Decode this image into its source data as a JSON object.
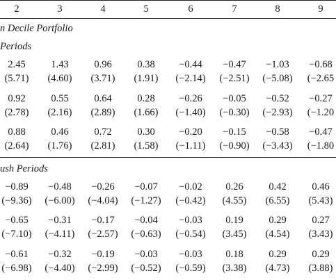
{
  "header": {
    "columns": [
      "2",
      "3",
      "4",
      "5",
      "6",
      "7",
      "8",
      "9"
    ]
  },
  "panel_title": "n Decile Portfolio",
  "sections": [
    {
      "label": "Periods",
      "groups": [
        {
          "values": [
            "2.45",
            "1.43",
            "0.96",
            "0.38",
            "−0.44",
            "−0.47",
            "−1.03",
            "−0.68"
          ],
          "tstats": [
            "(5.71)",
            "(4.60)",
            "(3.71)",
            "(1.91)",
            "(−2.14)",
            "(−2.51)",
            "(−5.08)",
            "(−2.65"
          ]
        },
        {
          "values": [
            "0.92",
            "0.55",
            "0.64",
            "0.28",
            "−0.26",
            "−0.05",
            "−0.52",
            "−0.27"
          ],
          "tstats": [
            "(2.78)",
            "(2.16)",
            "(2.89)",
            "(1.66)",
            "(−1.40)",
            "(−0.30)",
            "(−2.93)",
            "(−1.20"
          ]
        },
        {
          "values": [
            "0.88",
            "0.46",
            "0.72",
            "0.30",
            "−0.20",
            "−0.15",
            "−0.58",
            "−0.47"
          ],
          "tstats": [
            "(2.64)",
            "(1.76)",
            "(2.81)",
            "(1.58)",
            "(−1.11)",
            "(−0.90)",
            "(−3.43)",
            "(−1.80"
          ]
        }
      ]
    },
    {
      "label": "ush Periods",
      "groups": [
        {
          "values": [
            "−0.89",
            "−0.48",
            "−0.26",
            "−0.07",
            "−0.02",
            "0.26",
            "0.42",
            "0.46"
          ],
          "tstats": [
            "(−9.36)",
            "(−6.00)",
            "(−4.04)",
            "(−1.27)",
            "(−0.42)",
            "(4.55)",
            "(6.55)",
            "(5.43)"
          ]
        },
        {
          "values": [
            "−0.65",
            "−0.31",
            "−0.17",
            "−0.04",
            "−0.03",
            "0.19",
            "0.29",
            "0.27"
          ],
          "tstats": [
            "(−7.10)",
            "(−4.11)",
            "(−2.57)",
            "(−0.63)",
            "(−0.54)",
            "(3.45)",
            "(4.54)",
            "(3.43)"
          ]
        },
        {
          "values": [
            "−0.61",
            "−0.32",
            "−0.19",
            "−0.03",
            "−0.03",
            "0.18",
            "0.29",
            "0.29"
          ],
          "tstats": [
            "(−6.98)",
            "(−4.40)",
            "(−2.99)",
            "(−0.52)",
            "(−0.59)",
            "(3.38)",
            "(4.73)",
            "(3.88)"
          ]
        }
      ]
    }
  ]
}
